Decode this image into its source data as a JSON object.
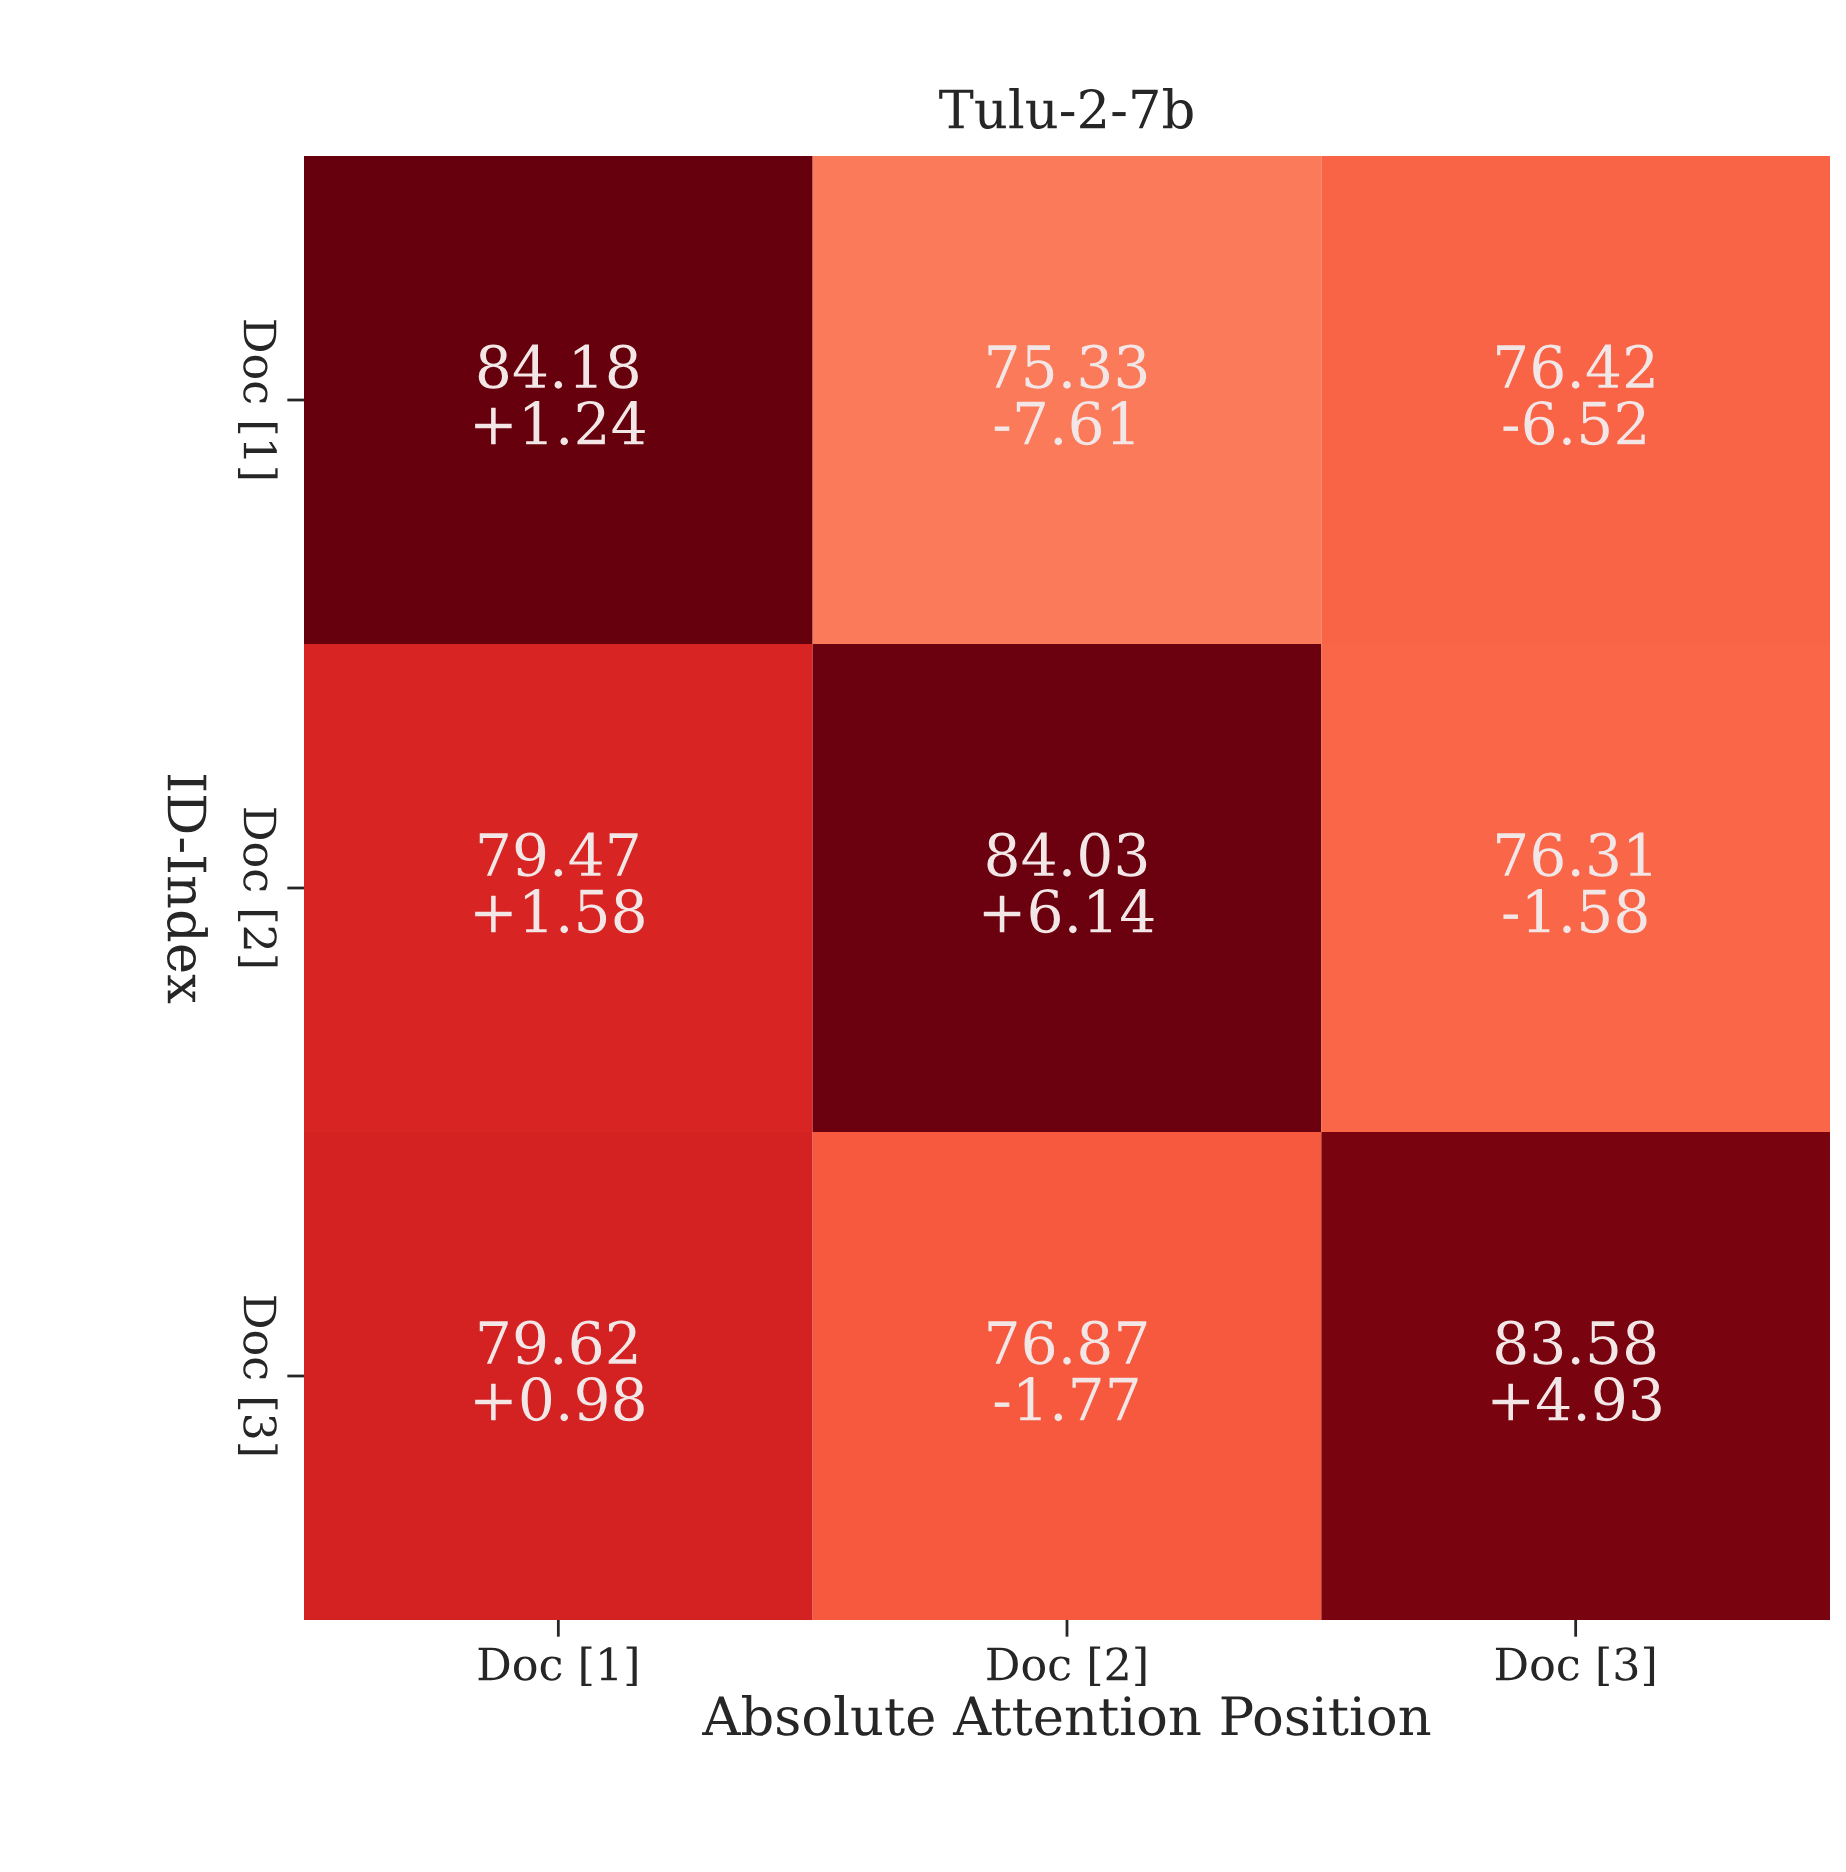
{
  "chart_data": {
    "type": "heatmap",
    "title": "Tulu-2-7b",
    "xlabel": "Absolute Attention Position",
    "ylabel": "ID-Index",
    "categories": [
      "Doc [1]",
      "Doc [2]",
      "Doc [3]"
    ],
    "y_categories": [
      "Doc [1]",
      "Doc [2]",
      "Doc [3]"
    ],
    "cells": [
      [
        84.18,
        75.33,
        76.42
      ],
      [
        79.47,
        84.03,
        76.31
      ],
      [
        79.62,
        76.87,
        83.58
      ]
    ],
    "data_labels": true,
    "annotations": [
      "+1.24",
      "-7.61",
      "-6.52",
      "+1.58",
      "+6.14",
      "-1.58",
      "+0.98",
      "-1.77",
      "+4.93"
    ],
    "grid": false
  }
}
